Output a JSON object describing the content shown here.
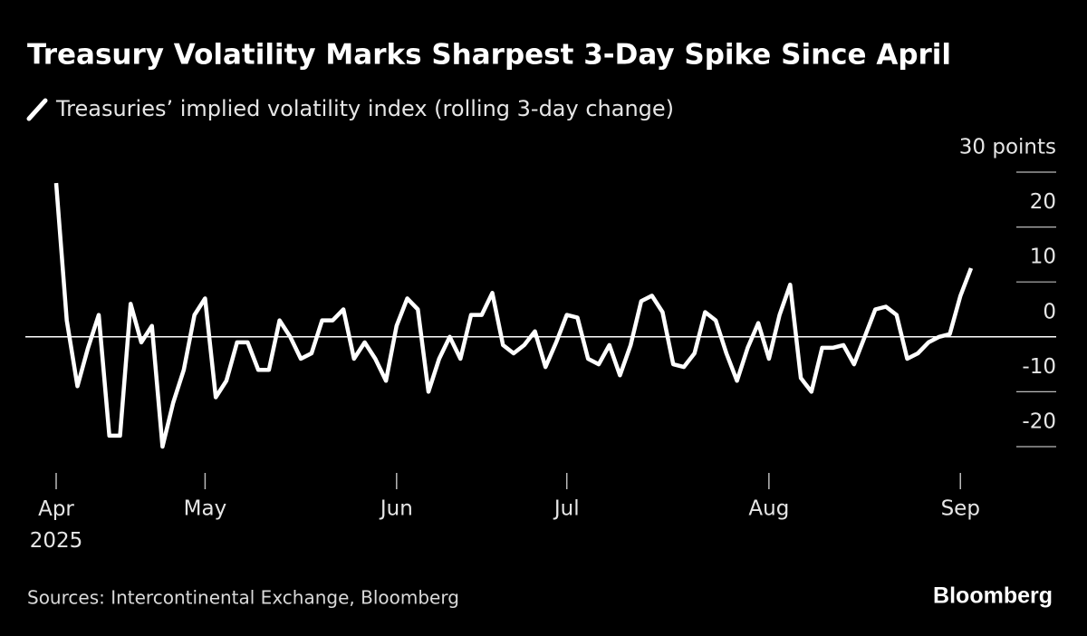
{
  "chart_data": {
    "type": "line",
    "title": "Treasury Volatility Marks Sharpest 3-Day Spike Since April",
    "source": "Sources: Intercontinental Exchange, Bloomberg",
    "logo": "Bloomberg",
    "categories": [
      "Apr 2025",
      null,
      null,
      null,
      null,
      null,
      null,
      null,
      null,
      null,
      null,
      null,
      null,
      null,
      "May",
      null,
      null,
      null,
      null,
      null,
      null,
      null,
      null,
      null,
      null,
      null,
      null,
      null,
      null,
      null,
      null,
      null,
      "Jun",
      null,
      null,
      null,
      null,
      null,
      null,
      null,
      null,
      null,
      null,
      null,
      null,
      null,
      null,
      null,
      "Jul",
      null,
      null,
      null,
      null,
      null,
      null,
      null,
      null,
      null,
      null,
      null,
      null,
      null,
      null,
      null,
      null,
      null,
      null,
      "Aug",
      null,
      null,
      null,
      null,
      null,
      null,
      null,
      null,
      null,
      null,
      null,
      null,
      null,
      null,
      null,
      null,
      null,
      "Sep",
      null
    ],
    "series": [
      {
        "name": "Treasuries’ implied volatility index (rolling 3-day change)",
        "color": "#ffffff",
        "values": [
          28,
          3,
          -9,
          -2,
          4,
          -18,
          -18,
          6,
          -1,
          2,
          -20,
          -12,
          -6,
          4,
          7,
          -11,
          -8,
          -1,
          -1,
          -6,
          -6,
          3,
          0,
          -4,
          -3,
          3,
          3,
          5,
          -4,
          -1,
          -4,
          -8,
          2,
          7,
          5,
          -10,
          -4,
          0,
          -4,
          4,
          4,
          8,
          -1.5,
          -3,
          -1.5,
          1,
          -5.5,
          -1,
          4,
          3.5,
          -4,
          -5,
          -1.5,
          -7,
          -1.5,
          6.5,
          7.5,
          4.5,
          -5,
          -5.5,
          -3,
          4.5,
          3,
          -3,
          -8,
          -2,
          2.5,
          -4,
          4,
          9.5,
          -7.5,
          -10,
          -2,
          -2,
          -1.5,
          -5,
          0,
          5,
          5.5,
          4,
          -4,
          -3,
          -1,
          0,
          0.5,
          7.5,
          12.5
        ]
      }
    ],
    "ylim": [
      -20,
      30
    ],
    "yticks": [
      -20,
      -10,
      0,
      10,
      20,
      {
        "value": 30,
        "label": "30 points"
      }
    ],
    "zero_line": true,
    "grid": false
  }
}
